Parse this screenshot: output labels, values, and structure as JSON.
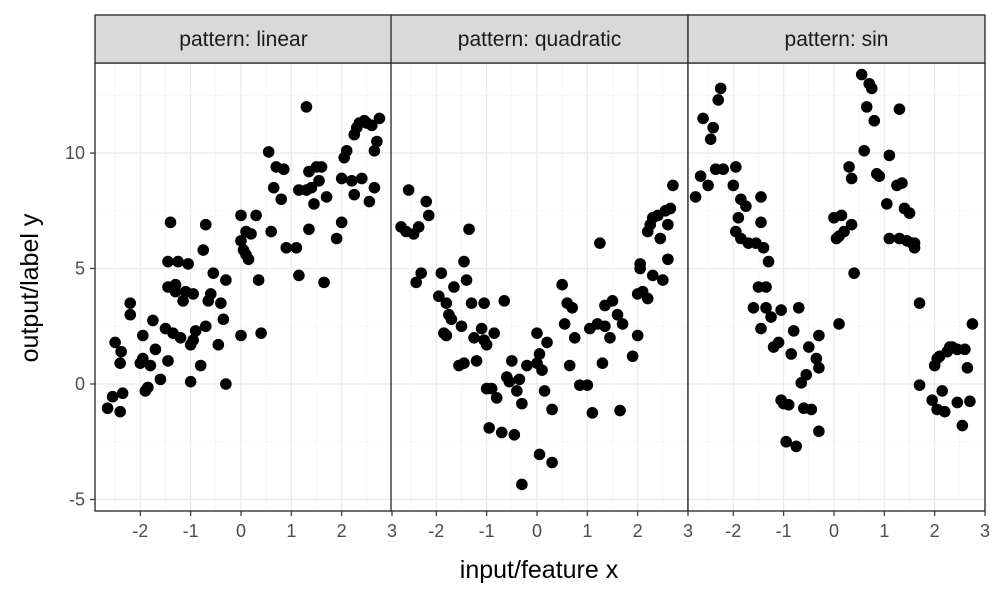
{
  "chart_data": {
    "type": "scatter",
    "xlabel": "input/feature x",
    "ylabel": "output/label y",
    "xlim": [
      -2.9,
      3.0
    ],
    "ylim": [
      -5.5,
      13.9
    ],
    "x_ticks": [
      -2,
      -1,
      0,
      1,
      2,
      3
    ],
    "y_ticks": [
      -5,
      0,
      5,
      10
    ],
    "grid": true,
    "point_color": "#000000",
    "panels": [
      {
        "label": "pattern: linear",
        "points": [
          [
            -2.65,
            -1.05
          ],
          [
            -2.55,
            -0.55
          ],
          [
            -2.5,
            1.8
          ],
          [
            -2.4,
            -1.2
          ],
          [
            -2.38,
            1.4
          ],
          [
            -2.4,
            0.9
          ],
          [
            -2.35,
            -0.4
          ],
          [
            -2.2,
            3.5
          ],
          [
            -2.2,
            3.0
          ],
          [
            -2.0,
            0.9
          ],
          [
            -1.95,
            2.1
          ],
          [
            -1.95,
            1.1
          ],
          [
            -1.9,
            -0.3
          ],
          [
            -1.85,
            -0.15
          ],
          [
            -1.8,
            0.8
          ],
          [
            -1.75,
            2.75
          ],
          [
            -1.7,
            1.5
          ],
          [
            -1.6,
            0.2
          ],
          [
            -1.5,
            2.4
          ],
          [
            -1.45,
            1.0
          ],
          [
            -1.45,
            4.2
          ],
          [
            -1.45,
            5.3
          ],
          [
            -1.4,
            7.0
          ],
          [
            -1.35,
            2.2
          ],
          [
            -1.3,
            4.0
          ],
          [
            -1.3,
            4.3
          ],
          [
            -1.25,
            5.3
          ],
          [
            -1.2,
            2.0
          ],
          [
            -1.15,
            3.6
          ],
          [
            -1.1,
            4.0
          ],
          [
            -1.05,
            5.2
          ],
          [
            -1.0,
            0.1
          ],
          [
            -1.0,
            1.7
          ],
          [
            -0.95,
            1.9
          ],
          [
            -0.95,
            3.9
          ],
          [
            -0.9,
            2.3
          ],
          [
            -0.8,
            0.8
          ],
          [
            -0.75,
            5.8
          ],
          [
            -0.7,
            2.5
          ],
          [
            -0.7,
            6.9
          ],
          [
            -0.65,
            3.6
          ],
          [
            -0.6,
            3.9
          ],
          [
            -0.55,
            4.8
          ],
          [
            -0.45,
            1.7
          ],
          [
            -0.4,
            3.5
          ],
          [
            -0.35,
            2.8
          ],
          [
            -0.3,
            4.5
          ],
          [
            -0.3,
            0.0
          ],
          [
            0.0,
            7.3
          ],
          [
            0.0,
            6.2
          ],
          [
            0.05,
            5.8
          ],
          [
            0.1,
            5.6
          ],
          [
            0.1,
            6.6
          ],
          [
            0.15,
            5.4
          ],
          [
            0.2,
            6.5
          ],
          [
            0.3,
            7.3
          ],
          [
            0.35,
            4.5
          ],
          [
            0.0,
            2.1
          ],
          [
            0.4,
            2.2
          ],
          [
            0.55,
            10.05
          ],
          [
            0.6,
            6.6
          ],
          [
            0.65,
            8.5
          ],
          [
            0.7,
            9.4
          ],
          [
            0.8,
            8.0
          ],
          [
            0.85,
            9.3
          ],
          [
            0.9,
            5.9
          ],
          [
            1.1,
            5.9
          ],
          [
            1.15,
            8.4
          ],
          [
            1.15,
            4.7
          ],
          [
            1.3,
            8.4
          ],
          [
            1.35,
            6.7
          ],
          [
            1.35,
            9.2
          ],
          [
            1.4,
            8.5
          ],
          [
            1.45,
            7.8
          ],
          [
            1.5,
            9.4
          ],
          [
            1.55,
            8.8
          ],
          [
            1.6,
            9.4
          ],
          [
            1.65,
            4.4
          ],
          [
            1.7,
            8.1
          ],
          [
            1.3,
            12.0
          ],
          [
            1.9,
            6.3
          ],
          [
            2.0,
            7.0
          ],
          [
            2.0,
            8.9
          ],
          [
            2.05,
            9.8
          ],
          [
            2.1,
            10.1
          ],
          [
            2.2,
            8.8
          ],
          [
            2.25,
            8.2
          ],
          [
            2.25,
            10.8
          ],
          [
            2.3,
            11.1
          ],
          [
            2.35,
            11.3
          ],
          [
            2.4,
            8.9
          ],
          [
            2.45,
            11.4
          ],
          [
            2.5,
            11.3
          ],
          [
            2.55,
            7.9
          ],
          [
            2.6,
            11.2
          ],
          [
            2.65,
            10.1
          ],
          [
            2.65,
            8.5
          ],
          [
            2.7,
            10.5
          ],
          [
            2.75,
            11.5
          ]
        ]
      },
      {
        "label": "pattern: quadratic",
        "points": [
          [
            -2.7,
            6.8
          ],
          [
            -2.6,
            6.6
          ],
          [
            -2.55,
            8.4
          ],
          [
            -2.45,
            6.5
          ],
          [
            -2.4,
            4.4
          ],
          [
            -2.35,
            6.8
          ],
          [
            -2.3,
            4.8
          ],
          [
            -2.2,
            7.9
          ],
          [
            -2.15,
            7.3
          ],
          [
            -1.95,
            3.8
          ],
          [
            -1.9,
            4.8
          ],
          [
            -1.85,
            2.2
          ],
          [
            -1.8,
            3.5
          ],
          [
            -1.8,
            2.1
          ],
          [
            -1.75,
            3.0
          ],
          [
            -1.7,
            2.8
          ],
          [
            -1.65,
            4.2
          ],
          [
            -1.55,
            0.8
          ],
          [
            -1.5,
            2.5
          ],
          [
            -1.45,
            0.9
          ],
          [
            -1.45,
            5.3
          ],
          [
            -1.4,
            4.5
          ],
          [
            -1.35,
            6.7
          ],
          [
            -1.3,
            3.5
          ],
          [
            -1.25,
            2.0
          ],
          [
            -1.2,
            1.0
          ],
          [
            -1.1,
            2.4
          ],
          [
            -1.05,
            1.9
          ],
          [
            -1.05,
            3.5
          ],
          [
            -1.0,
            1.7
          ],
          [
            -1.0,
            -0.2
          ],
          [
            -0.95,
            -1.9
          ],
          [
            -0.9,
            -0.2
          ],
          [
            -0.85,
            2.2
          ],
          [
            -0.8,
            -0.6
          ],
          [
            -0.7,
            -2.1
          ],
          [
            -0.65,
            3.6
          ],
          [
            -0.6,
            0.3
          ],
          [
            -0.55,
            0.1
          ],
          [
            -0.5,
            1.0
          ],
          [
            -0.45,
            -2.2
          ],
          [
            -0.4,
            -0.3
          ],
          [
            -0.35,
            0.2
          ],
          [
            -0.3,
            -0.85
          ],
          [
            -0.3,
            -4.35
          ],
          [
            -0.2,
            0.8
          ],
          [
            0.0,
            2.2
          ],
          [
            0.0,
            0.9
          ],
          [
            0.05,
            1.3
          ],
          [
            0.05,
            -3.05
          ],
          [
            0.1,
            0.6
          ],
          [
            0.15,
            -0.3
          ],
          [
            0.2,
            1.8
          ],
          [
            0.3,
            -1.1
          ],
          [
            0.3,
            -3.4
          ],
          [
            0.5,
            4.3
          ],
          [
            0.55,
            2.6
          ],
          [
            0.6,
            3.5
          ],
          [
            0.65,
            0.8
          ],
          [
            0.7,
            3.3
          ],
          [
            0.75,
            2.0
          ],
          [
            0.85,
            -0.05
          ],
          [
            1.0,
            -0.05
          ],
          [
            1.05,
            2.4
          ],
          [
            1.1,
            -1.25
          ],
          [
            1.2,
            2.6
          ],
          [
            1.25,
            6.1
          ],
          [
            1.3,
            0.9
          ],
          [
            1.35,
            3.4
          ],
          [
            1.35,
            2.5
          ],
          [
            1.45,
            2.0
          ],
          [
            1.5,
            3.6
          ],
          [
            1.6,
            3.0
          ],
          [
            1.65,
            -1.15
          ],
          [
            1.7,
            2.6
          ],
          [
            1.9,
            1.2
          ],
          [
            2.0,
            2.1
          ],
          [
            2.0,
            3.9
          ],
          [
            2.05,
            5.0
          ],
          [
            2.05,
            5.2
          ],
          [
            2.1,
            4.0
          ],
          [
            2.2,
            3.7
          ],
          [
            2.2,
            6.6
          ],
          [
            2.25,
            6.9
          ],
          [
            2.3,
            7.2
          ],
          [
            2.3,
            4.7
          ],
          [
            2.4,
            7.3
          ],
          [
            2.45,
            6.3
          ],
          [
            2.5,
            4.5
          ],
          [
            2.55,
            7.5
          ],
          [
            2.6,
            5.4
          ],
          [
            2.6,
            6.9
          ],
          [
            2.65,
            7.6
          ],
          [
            2.7,
            8.6
          ]
        ]
      },
      {
        "label": "pattern: sin",
        "points": [
          [
            -2.75,
            8.1
          ],
          [
            -2.65,
            9.0
          ],
          [
            -2.6,
            11.5
          ],
          [
            -2.5,
            8.6
          ],
          [
            -2.45,
            10.6
          ],
          [
            -2.4,
            11.1
          ],
          [
            -2.35,
            9.3
          ],
          [
            -2.3,
            12.3
          ],
          [
            -2.25,
            12.8
          ],
          [
            -2.2,
            9.3
          ],
          [
            -2.0,
            8.6
          ],
          [
            -1.95,
            9.4
          ],
          [
            -1.95,
            6.6
          ],
          [
            -1.9,
            7.2
          ],
          [
            -1.85,
            8.0
          ],
          [
            -1.85,
            6.3
          ],
          [
            -1.75,
            7.7
          ],
          [
            -1.7,
            6.1
          ],
          [
            -1.6,
            3.3
          ],
          [
            -1.55,
            6.1
          ],
          [
            -1.5,
            4.2
          ],
          [
            -1.45,
            8.1
          ],
          [
            -1.45,
            7.0
          ],
          [
            -1.4,
            5.9
          ],
          [
            -1.35,
            4.2
          ],
          [
            -1.3,
            5.3
          ],
          [
            -1.35,
            3.3
          ],
          [
            -1.45,
            2.4
          ],
          [
            -1.25,
            2.9
          ],
          [
            -1.2,
            1.6
          ],
          [
            -1.1,
            1.8
          ],
          [
            -1.05,
            3.2
          ],
          [
            -1.05,
            -0.7
          ],
          [
            -1.0,
            -0.85
          ],
          [
            -0.95,
            -2.5
          ],
          [
            -0.9,
            -0.9
          ],
          [
            -0.85,
            1.3
          ],
          [
            -0.8,
            2.3
          ],
          [
            -0.75,
            -2.7
          ],
          [
            -0.7,
            3.3
          ],
          [
            -0.65,
            0.05
          ],
          [
            -0.55,
            0.4
          ],
          [
            -0.6,
            -1.05
          ],
          [
            -0.5,
            1.6
          ],
          [
            -0.45,
            -1.1
          ],
          [
            -0.35,
            1.1
          ],
          [
            -0.3,
            0.7
          ],
          [
            -0.3,
            2.1
          ],
          [
            -0.3,
            -2.05
          ],
          [
            0.0,
            7.2
          ],
          [
            0.05,
            6.3
          ],
          [
            0.1,
            6.4
          ],
          [
            0.1,
            2.6
          ],
          [
            0.15,
            7.3
          ],
          [
            0.2,
            6.6
          ],
          [
            0.3,
            9.4
          ],
          [
            0.35,
            8.9
          ],
          [
            0.35,
            6.9
          ],
          [
            0.4,
            4.8
          ],
          [
            0.55,
            13.4
          ],
          [
            0.6,
            10.1
          ],
          [
            0.65,
            12.0
          ],
          [
            0.7,
            13.0
          ],
          [
            0.75,
            12.8
          ],
          [
            0.8,
            11.4
          ],
          [
            0.85,
            9.1
          ],
          [
            0.9,
            9.0
          ],
          [
            1.05,
            7.8
          ],
          [
            1.1,
            9.9
          ],
          [
            1.1,
            6.3
          ],
          [
            1.25,
            8.6
          ],
          [
            1.3,
            11.9
          ],
          [
            1.3,
            6.3
          ],
          [
            1.35,
            8.7
          ],
          [
            1.4,
            7.6
          ],
          [
            1.45,
            6.2
          ],
          [
            1.5,
            7.4
          ],
          [
            1.55,
            6.1
          ],
          [
            1.6,
            6.1
          ],
          [
            1.6,
            5.9
          ],
          [
            1.7,
            3.5
          ],
          [
            1.7,
            -0.05
          ],
          [
            1.95,
            -0.7
          ],
          [
            2.0,
            0.8
          ],
          [
            2.05,
            -1.1
          ],
          [
            2.05,
            1.1
          ],
          [
            2.1,
            1.2
          ],
          [
            2.15,
            -0.3
          ],
          [
            2.2,
            -1.2
          ],
          [
            2.25,
            1.4
          ],
          [
            2.3,
            1.6
          ],
          [
            2.35,
            1.6
          ],
          [
            2.45,
            1.5
          ],
          [
            2.45,
            -0.8
          ],
          [
            2.55,
            -1.8
          ],
          [
            2.6,
            1.5
          ],
          [
            2.65,
            0.7
          ],
          [
            2.7,
            -0.75
          ],
          [
            2.75,
            2.6
          ]
        ]
      }
    ]
  }
}
